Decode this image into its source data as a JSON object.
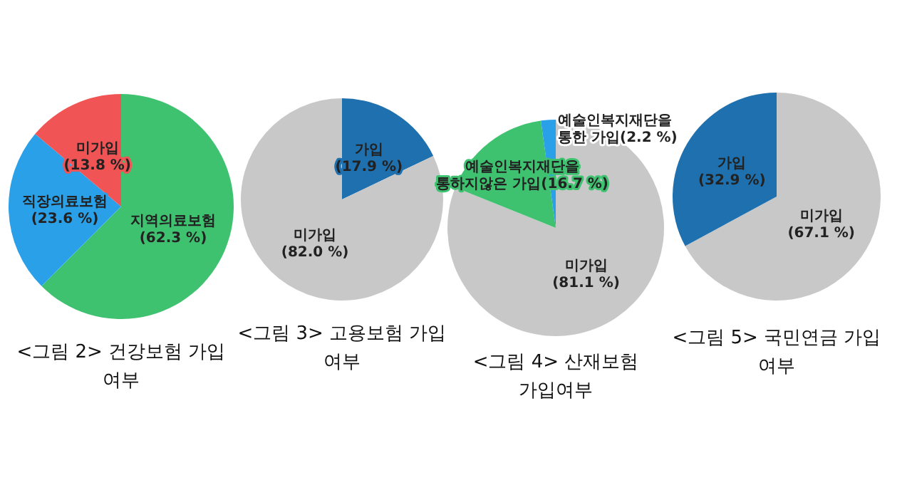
{
  "chart_data": [
    {
      "type": "pie",
      "title": "<그림 2> 건강보험 가입 여부",
      "categories": [
        "지역의료보험",
        "직장의료보험",
        "미가입"
      ],
      "values": [
        62.3,
        23.6,
        13.8
      ],
      "value_labels": [
        "(62.3 %)",
        "(23.6 %)",
        "(13.8 %)"
      ],
      "colors": [
        "#3fc270",
        "#2aa0e8",
        "#f05454"
      ]
    },
    {
      "type": "pie",
      "title": "<그림 3> 고용보험 가입여부",
      "categories": [
        "가입",
        "미가입"
      ],
      "values": [
        17.9,
        82.0
      ],
      "value_labels": [
        "(17.9 %)",
        "(82.0 %)"
      ],
      "colors": [
        "#1f70ae",
        "#c8c8c8"
      ]
    },
    {
      "type": "pie",
      "title": "<그림 4> 산재보험 가입여부",
      "categories": [
        "미가입",
        "예술인복지재단을 통하지않은 가입",
        "예술인복지재단을 통한 가입"
      ],
      "values": [
        81.1,
        16.7,
        2.2
      ],
      "value_labels": [
        "(81.1 %)",
        "(16.7 %)",
        "(2.2 %)"
      ],
      "colors": [
        "#c8c8c8",
        "#3fc270",
        "#2aa0e8"
      ]
    },
    {
      "type": "pie",
      "title": "<그림 5> 국민연금 가입 여부",
      "categories": [
        "미가입",
        "가입"
      ],
      "values": [
        67.1,
        32.9
      ],
      "value_labels": [
        "(67.1 %)",
        "(32.9 %)"
      ],
      "colors": [
        "#c8c8c8",
        "#1f70ae"
      ]
    }
  ]
}
